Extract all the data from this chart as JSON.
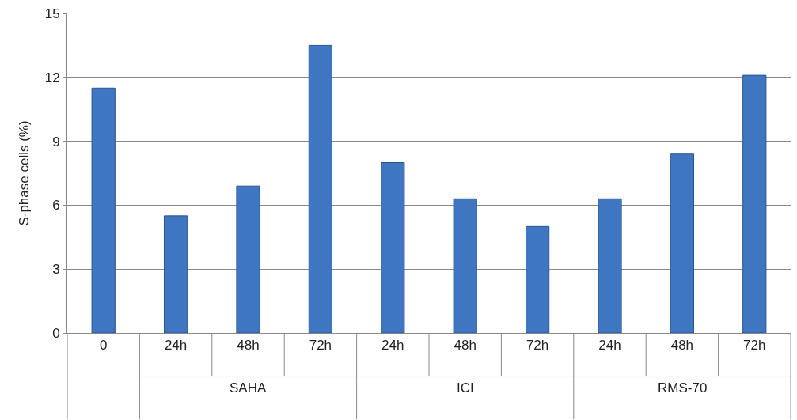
{
  "chart_data": {
    "type": "bar",
    "ylabel": "S-phase cells (%)",
    "categories": [
      "0",
      "24h",
      "48h",
      "72h",
      "24h",
      "48h",
      "72h",
      "24h",
      "48h",
      "72h"
    ],
    "values": [
      11.5,
      5.5,
      6.9,
      13.5,
      8.0,
      6.3,
      5.0,
      6.3,
      8.4,
      12.1
    ],
    "color": "#3f76c1",
    "ylim": [
      0,
      15
    ],
    "yticks": [
      0,
      3,
      6,
      9,
      12,
      15
    ],
    "grid": "y",
    "annotations": [
      "SAHA",
      "ICI",
      "RMS-70"
    ]
  }
}
